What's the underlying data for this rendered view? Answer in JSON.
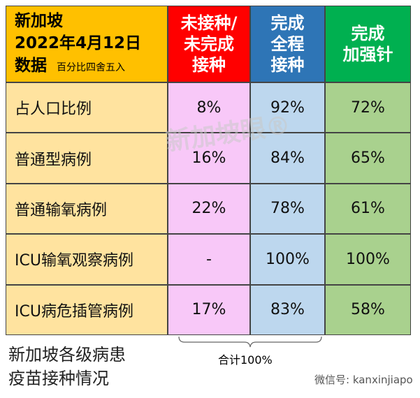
{
  "table": {
    "header": {
      "title_lines": [
        "新加坡",
        "2022年4月12日",
        "数据"
      ],
      "note": "百分比四舍五入",
      "columns": [
        [
          "未接种/",
          "未完成",
          "接种"
        ],
        [
          "完成",
          "全程",
          "接种"
        ],
        [
          "完成",
          "加强针"
        ]
      ]
    },
    "rows": [
      [
        "占人口比例",
        "8%",
        "92%",
        "72%"
      ],
      [
        "普通型病例",
        "16%",
        "84%",
        "65%"
      ],
      [
        "普通输氧病例",
        "22%",
        "78%",
        "61%"
      ],
      [
        "ICU输氧观察病例",
        "-",
        "100%",
        "100%"
      ],
      [
        "ICU病危插管病例",
        "17%",
        "83%",
        "58%"
      ]
    ]
  },
  "sum_note": "合计100%",
  "caption_lines": [
    "新加坡各级病患",
    "疫苗接种情况"
  ],
  "watermark": "新加坡眼®",
  "wechat": "微信号: kanxinjiapo"
}
